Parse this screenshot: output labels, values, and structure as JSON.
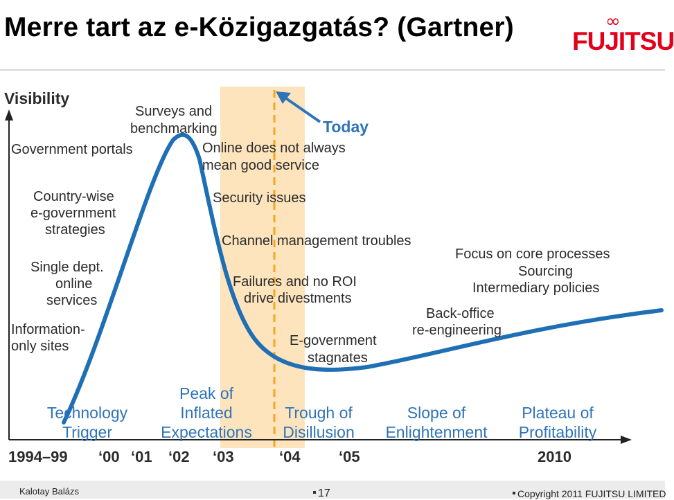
{
  "slide": {
    "title": "Merre tart az e-Közigazgatás? (Gartner)",
    "logo_text": "FUJITSU",
    "logo_mark": "∞"
  },
  "diagram": {
    "y_axis_label": "Visibility",
    "today_label": "Today",
    "curve_color": "#1f6fb5",
    "band_color": "#fde4bd",
    "today_line_color": "#f5a623",
    "rise_labels": [
      "Government portals",
      "Country-wise e-government strategies",
      "Single dept. online services",
      "Information-only sites"
    ],
    "peak_label": "Surveys and benchmarking",
    "trough_labels": [
      "Online does not always mean good service",
      "Security issues",
      "Channel management troubles",
      "Failures and no ROI drive divestments",
      "E-government stagnates"
    ],
    "slope_labels": [
      "Back-office re-engineering",
      "Focus on core processes",
      "Sourcing",
      "Intermediary policies"
    ],
    "phases": [
      "Technology Trigger",
      "Peak of Inflated Expectations",
      "Trough of Disillusion",
      "Slope of Enlightenment",
      "Plateau of Profitability"
    ],
    "timeline": [
      "1994–99",
      "‘00",
      "‘01",
      "‘02",
      "‘03",
      "‘04",
      "‘05",
      "2010"
    ]
  },
  "footer": {
    "author": "Kalotay Balázs",
    "page_number": "17",
    "copyright": "Copyright 2011 FUJITSU LIMITED"
  }
}
